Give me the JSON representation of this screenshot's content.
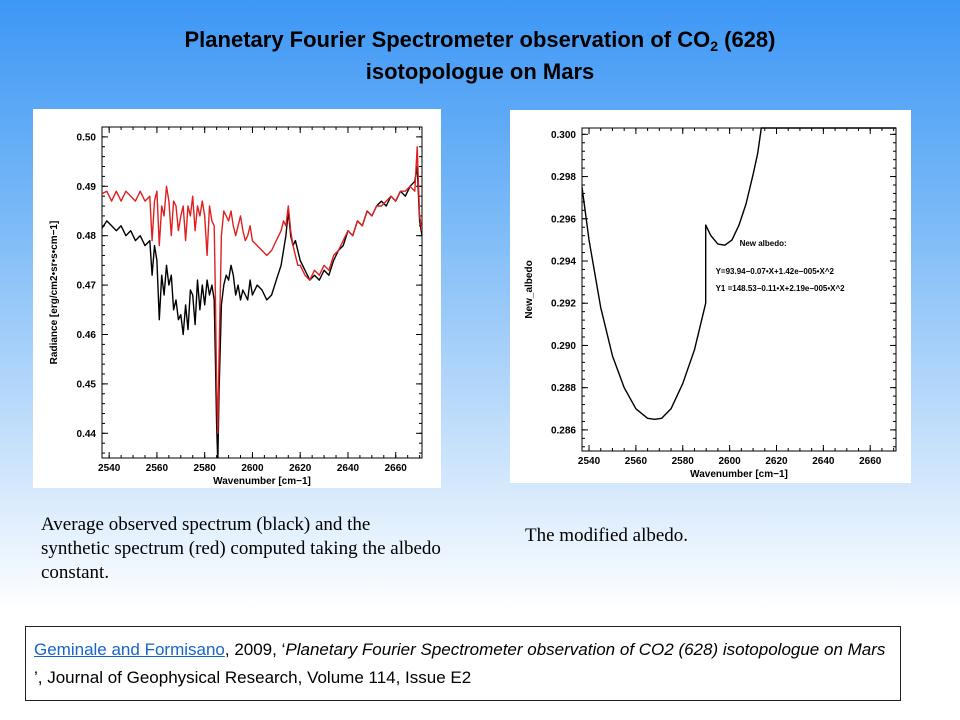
{
  "slide": {
    "title_line1_pre": "Planetary Fourier Spectrometer observation of CO",
    "title_sub": "2",
    "title_line1_post": " (628)",
    "title_line2": "isotopologue on Mars"
  },
  "captions": {
    "left": "Average observed spectrum (black) and the synthetic spectrum (red) computed taking the albedo constant.",
    "right": "The modified albedo."
  },
  "reference": {
    "authors_link": "Geminale and Formisano",
    "year_part": ", 2009, ‘",
    "title_italic": "Planetary Fourier Spectrometer observation of CO2 (628) isotopologue on Mars",
    "rest": " ’, Journal of Geophysical Research, Volume 114, Issue E2",
    "link_color": "#1565c8"
  },
  "chart_data": [
    {
      "type": "line",
      "xlabel": "Wavenumber [cm−1]",
      "ylabel": "Radiance [erg/cm2•sr•s•cm−1]",
      "xlim": [
        2537,
        2671
      ],
      "ylim": [
        0.435,
        0.502
      ],
      "xticks": [
        2540,
        2560,
        2580,
        2600,
        2620,
        2640,
        2660
      ],
      "xtick_labels": [
        "2540",
        "2560",
        "2580",
        "2600",
        "2620",
        "2640",
        "2660"
      ],
      "yticks": [
        0.44,
        0.45,
        0.46,
        0.47,
        0.48,
        0.49,
        0.5
      ],
      "ytick_labels": [
        "0.44",
        "0.45",
        "0.46",
        "0.47",
        "0.48",
        "0.49",
        "0.50"
      ],
      "series": [
        {
          "color": "#000000",
          "x": [
            2537,
            2539,
            2541,
            2543,
            2545,
            2547,
            2549,
            2551,
            2553,
            2555,
            2557,
            2558,
            2559,
            2560,
            2561,
            2562,
            2563,
            2564,
            2565,
            2566,
            2567,
            2568,
            2569,
            2570,
            2571,
            2572,
            2573,
            2574,
            2575,
            2576,
            2577,
            2578,
            2579,
            2580,
            2581,
            2582,
            2583,
            2584,
            2584.5,
            2585,
            2585.5,
            2586,
            2587,
            2588,
            2589,
            2590,
            2591,
            2592,
            2593,
            2594,
            2595,
            2596,
            2597,
            2598,
            2599,
            2600,
            2602,
            2604,
            2606,
            2608,
            2610,
            2612,
            2613,
            2614,
            2615,
            2616,
            2617,
            2618,
            2619,
            2620,
            2622,
            2624,
            2626,
            2628,
            2630,
            2632,
            2634,
            2636,
            2638,
            2640,
            2642,
            2644,
            2646,
            2648,
            2650,
            2652,
            2654,
            2656,
            2658,
            2660,
            2662,
            2664,
            2666,
            2668,
            2669,
            2670,
            2671
          ],
          "y": [
            0.4815,
            0.483,
            0.482,
            0.481,
            0.482,
            0.48,
            0.481,
            0.479,
            0.48,
            0.478,
            0.479,
            0.472,
            0.478,
            0.475,
            0.463,
            0.472,
            0.468,
            0.474,
            0.47,
            0.472,
            0.465,
            0.467,
            0.463,
            0.464,
            0.46,
            0.466,
            0.461,
            0.469,
            0.468,
            0.462,
            0.471,
            0.465,
            0.47,
            0.466,
            0.471,
            0.468,
            0.47,
            0.467,
            0.455,
            0.442,
            0.434,
            0.448,
            0.466,
            0.47,
            0.472,
            0.471,
            0.474,
            0.472,
            0.468,
            0.47,
            0.467,
            0.469,
            0.468,
            0.467,
            0.471,
            0.468,
            0.47,
            0.469,
            0.467,
            0.468,
            0.471,
            0.474,
            0.477,
            0.48,
            0.485,
            0.48,
            0.478,
            0.479,
            0.477,
            0.475,
            0.473,
            0.471,
            0.472,
            0.471,
            0.473,
            0.472,
            0.475,
            0.477,
            0.478,
            0.481,
            0.48,
            0.483,
            0.482,
            0.485,
            0.484,
            0.486,
            0.487,
            0.486,
            0.488,
            0.487,
            0.489,
            0.488,
            0.49,
            0.491,
            0.494,
            0.483,
            0.48
          ]
        },
        {
          "color": "#e02020",
          "x": [
            2537,
            2539,
            2541,
            2543,
            2545,
            2547,
            2549,
            2551,
            2553,
            2555,
            2557,
            2558,
            2559,
            2560,
            2561,
            2562,
            2563,
            2564,
            2565,
            2566,
            2567,
            2568,
            2569,
            2570,
            2571,
            2572,
            2573,
            2574,
            2575,
            2576,
            2577,
            2578,
            2579,
            2580,
            2581,
            2582,
            2583,
            2584,
            2584.5,
            2585,
            2585.5,
            2586,
            2587,
            2588,
            2589,
            2590,
            2591,
            2592,
            2593,
            2594,
            2595,
            2596,
            2597,
            2598,
            2599,
            2600,
            2602,
            2604,
            2606,
            2608,
            2610,
            2612,
            2613,
            2614,
            2615,
            2616,
            2617,
            2618,
            2619,
            2620,
            2622,
            2624,
            2626,
            2628,
            2630,
            2632,
            2634,
            2636,
            2638,
            2640,
            2642,
            2644,
            2646,
            2648,
            2650,
            2652,
            2654,
            2656,
            2658,
            2660,
            2662,
            2664,
            2666,
            2668,
            2669,
            2670,
            2671
          ],
          "y": [
            0.4885,
            0.489,
            0.487,
            0.489,
            0.487,
            0.489,
            0.488,
            0.487,
            0.489,
            0.487,
            0.488,
            0.479,
            0.487,
            0.489,
            0.478,
            0.486,
            0.484,
            0.49,
            0.487,
            0.48,
            0.487,
            0.486,
            0.481,
            0.484,
            0.486,
            0.479,
            0.486,
            0.484,
            0.488,
            0.481,
            0.486,
            0.484,
            0.487,
            0.484,
            0.476,
            0.486,
            0.483,
            0.482,
            0.468,
            0.45,
            0.44,
            0.455,
            0.48,
            0.485,
            0.484,
            0.483,
            0.485,
            0.482,
            0.48,
            0.482,
            0.484,
            0.481,
            0.479,
            0.48,
            0.482,
            0.479,
            0.478,
            0.477,
            0.476,
            0.477,
            0.479,
            0.481,
            0.483,
            0.482,
            0.486,
            0.481,
            0.478,
            0.476,
            0.474,
            0.474,
            0.472,
            0.471,
            0.473,
            0.472,
            0.474,
            0.473,
            0.476,
            0.477,
            0.479,
            0.481,
            0.48,
            0.483,
            0.482,
            0.485,
            0.484,
            0.486,
            0.486,
            0.487,
            0.488,
            0.487,
            0.489,
            0.489,
            0.49,
            0.489,
            0.498,
            0.484,
            0.481
          ]
        }
      ]
    },
    {
      "type": "line",
      "xlabel": "Wavenumber [cm−1]",
      "ylabel": "New_albedo",
      "xlim": [
        2537,
        2671
      ],
      "ylim": [
        0.285,
        0.3003
      ],
      "xticks": [
        2540,
        2560,
        2580,
        2600,
        2620,
        2640,
        2660
      ],
      "xtick_labels": [
        "2540",
        "2560",
        "2580",
        "2600",
        "2620",
        "2640",
        "2660"
      ],
      "yticks": [
        0.286,
        0.288,
        0.29,
        0.292,
        0.294,
        0.296,
        0.298,
        0.3
      ],
      "ytick_labels": [
        "0.286",
        "0.288",
        "0.290",
        "0.292",
        "0.294",
        "0.296",
        "0.298",
        "0.300"
      ],
      "annotations": [
        "New albedo:",
        "Y=93.94−0.07•X+1.42e−005•X^2",
        "Y1 =148.53−0.11•X+2.19e−005•X^2"
      ],
      "series": [
        {
          "color": "#000000",
          "x": [
            2537,
            2540,
            2545,
            2550,
            2555,
            2560,
            2565,
            2568,
            2571,
            2575,
            2580,
            2585,
            2589.8,
            2589.8,
            2592,
            2595,
            2598,
            2601,
            2604,
            2607,
            2610,
            2612,
            2613.5,
            2614,
            2620,
            2630,
            2640,
            2650,
            2660,
            2671
          ],
          "y": [
            0.2975,
            0.295,
            0.2918,
            0.2895,
            0.288,
            0.287,
            0.28655,
            0.2865,
            0.28655,
            0.287,
            0.2882,
            0.2898,
            0.292,
            0.2957,
            0.2952,
            0.2948,
            0.29475,
            0.295,
            0.2957,
            0.2967,
            0.2981,
            0.2991,
            0.3003,
            0.3003,
            0.3003,
            0.3003,
            0.3003,
            0.3003,
            0.3003,
            0.3003
          ]
        }
      ]
    }
  ]
}
